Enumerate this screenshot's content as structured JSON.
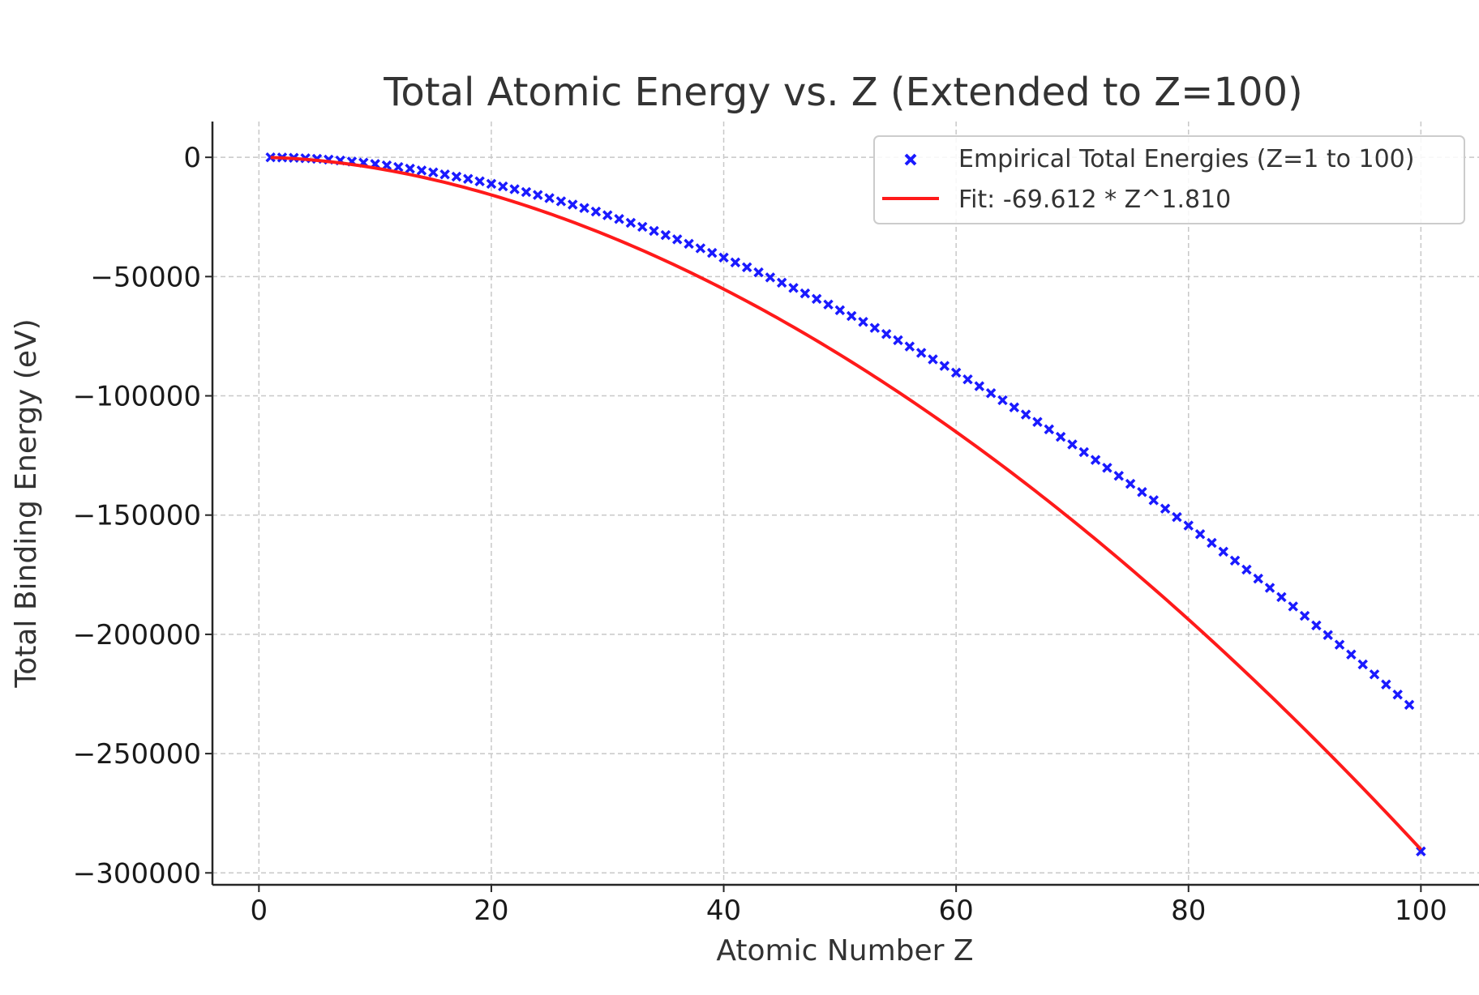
{
  "chart_data": {
    "type": "scatter",
    "title": "Total Atomic Energy vs. Z (Extended to Z=100)",
    "xlabel": "Atomic Number Z",
    "ylabel": "Total Binding Energy (eV)",
    "xlim": [
      -4,
      105
    ],
    "ylim": [
      -305000,
      15000
    ],
    "xticks": [
      0,
      20,
      40,
      60,
      80,
      100
    ],
    "yticks": [
      0,
      -50000,
      -100000,
      -150000,
      -200000,
      -250000,
      -300000
    ],
    "xtick_labels": [
      "0",
      "20",
      "40",
      "60",
      "80",
      "100"
    ],
    "ytick_labels": [
      "0",
      "−50000",
      "−100000",
      "−150000",
      "−200000",
      "−250000",
      "−300000"
    ],
    "grid": true,
    "legend_position": "top-right",
    "series": [
      {
        "name": "Empirical Total Energies (Z=1 to 100)",
        "kind": "scatter",
        "marker": "x",
        "color": "#1a1aff",
        "x": [
          1,
          2,
          3,
          4,
          5,
          6,
          7,
          8,
          9,
          10,
          11,
          12,
          13,
          14,
          15,
          16,
          17,
          18,
          19,
          20,
          21,
          22,
          23,
          24,
          25,
          26,
          27,
          28,
          29,
          30,
          31,
          32,
          33,
          34,
          35,
          36,
          37,
          38,
          39,
          40,
          41,
          42,
          43,
          44,
          45,
          46,
          47,
          48,
          49,
          50,
          51,
          52,
          53,
          54,
          55,
          56,
          57,
          58,
          59,
          60,
          61,
          62,
          63,
          64,
          65,
          66,
          67,
          68,
          69,
          70,
          71,
          72,
          73,
          74,
          75,
          76,
          77,
          78,
          79,
          80,
          81,
          82,
          83,
          84,
          85,
          86,
          87,
          88,
          89,
          90,
          91,
          92,
          93,
          94,
          95,
          96,
          97,
          98,
          99,
          100
        ],
        "y": [
          -14,
          -79,
          -203,
          -389,
          -639,
          -950,
          -1330,
          -1760,
          -2250,
          -2800,
          -3400,
          -4050,
          -4750,
          -5510,
          -6320,
          -7180,
          -8090,
          -9040,
          -10050,
          -11100,
          -12200,
          -13350,
          -14550,
          -15800,
          -17100,
          -18440,
          -19830,
          -21260,
          -22740,
          -24270,
          -25850,
          -27470,
          -29140,
          -30850,
          -32600,
          -34400,
          -36250,
          -38140,
          -40070,
          -42040,
          -44060,
          -46120,
          -48220,
          -50360,
          -52550,
          -54780,
          -57050,
          -59360,
          -61710,
          -64100,
          -66530,
          -69000,
          -71520,
          -74080,
          -76680,
          -79310,
          -81990,
          -84710,
          -87460,
          -90260,
          -93090,
          -95970,
          -98880,
          -101840,
          -104830,
          -107860,
          -110930,
          -114040,
          -117190,
          -120380,
          -123610,
          -126870,
          -130180,
          -133520,
          -136900,
          -140320,
          -143780,
          -147280,
          -150820,
          -154400,
          -158010,
          -161660,
          -165350,
          -169080,
          -172840,
          -176650,
          -180490,
          -184370,
          -188290,
          -192240,
          -196240,
          -200270,
          -204340,
          -208450,
          -212590,
          -216780,
          -221000,
          -225260,
          -229560,
          -291000
        ]
      },
      {
        "name": "Fit: -69.612 * Z^1.810",
        "kind": "line",
        "color": "#ff1a1a",
        "a": -69.612,
        "b": 1.81,
        "x_range": [
          1,
          100
        ]
      }
    ]
  }
}
